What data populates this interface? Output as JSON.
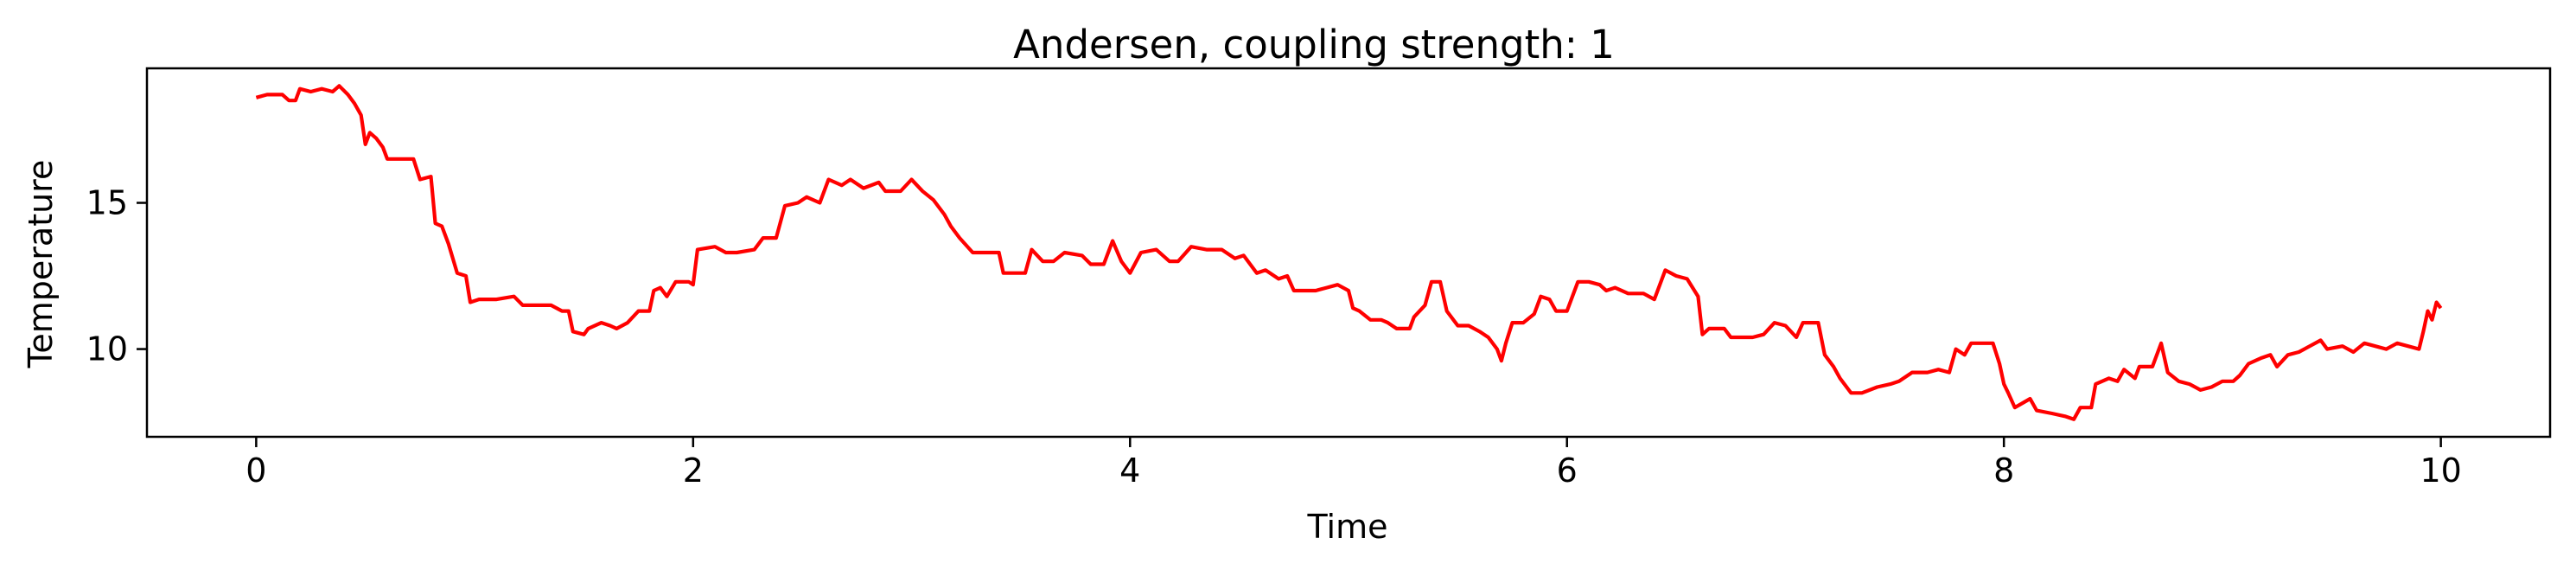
{
  "chart_data": {
    "type": "line",
    "title": "Andersen, coupling strength: 1",
    "xlabel": "Time",
    "ylabel": "Temperature",
    "xlim": [
      -0.5,
      10.5
    ],
    "ylim": [
      7.0,
      19.6
    ],
    "xticks": [
      0,
      2,
      4,
      6,
      8,
      10
    ],
    "yticks": [
      10,
      15
    ],
    "grid": false,
    "legend": "none",
    "series": [
      {
        "color": "#ff0000",
        "points": [
          [
            0.0,
            18.6
          ],
          [
            0.05,
            18.7
          ],
          [
            0.12,
            18.7
          ],
          [
            0.15,
            18.5
          ],
          [
            0.18,
            18.5
          ],
          [
            0.2,
            18.9
          ],
          [
            0.25,
            18.8
          ],
          [
            0.3,
            18.9
          ],
          [
            0.35,
            18.8
          ],
          [
            0.38,
            19.0
          ],
          [
            0.42,
            18.7
          ],
          [
            0.45,
            18.4
          ],
          [
            0.48,
            18.0
          ],
          [
            0.5,
            17.0
          ],
          [
            0.52,
            17.4
          ],
          [
            0.55,
            17.2
          ],
          [
            0.58,
            16.9
          ],
          [
            0.6,
            16.5
          ],
          [
            0.65,
            16.5
          ],
          [
            0.72,
            16.5
          ],
          [
            0.75,
            15.8
          ],
          [
            0.8,
            15.9
          ],
          [
            0.82,
            14.3
          ],
          [
            0.85,
            14.2
          ],
          [
            0.88,
            13.6
          ],
          [
            0.92,
            12.6
          ],
          [
            0.96,
            12.5
          ],
          [
            0.98,
            11.6
          ],
          [
            1.02,
            11.7
          ],
          [
            1.1,
            11.7
          ],
          [
            1.18,
            11.8
          ],
          [
            1.22,
            11.5
          ],
          [
            1.35,
            11.5
          ],
          [
            1.4,
            11.3
          ],
          [
            1.43,
            11.3
          ],
          [
            1.45,
            10.6
          ],
          [
            1.5,
            10.5
          ],
          [
            1.52,
            10.7
          ],
          [
            1.58,
            10.9
          ],
          [
            1.62,
            10.8
          ],
          [
            1.65,
            10.7
          ],
          [
            1.7,
            10.9
          ],
          [
            1.75,
            11.3
          ],
          [
            1.8,
            11.3
          ],
          [
            1.82,
            12.0
          ],
          [
            1.85,
            12.1
          ],
          [
            1.88,
            11.8
          ],
          [
            1.92,
            12.3
          ],
          [
            1.98,
            12.3
          ],
          [
            2.0,
            12.2
          ],
          [
            2.02,
            13.4
          ],
          [
            2.1,
            13.5
          ],
          [
            2.15,
            13.3
          ],
          [
            2.2,
            13.3
          ],
          [
            2.28,
            13.4
          ],
          [
            2.32,
            13.8
          ],
          [
            2.38,
            13.8
          ],
          [
            2.42,
            14.9
          ],
          [
            2.48,
            15.0
          ],
          [
            2.52,
            15.2
          ],
          [
            2.58,
            15.0
          ],
          [
            2.62,
            15.8
          ],
          [
            2.68,
            15.6
          ],
          [
            2.72,
            15.8
          ],
          [
            2.78,
            15.5
          ],
          [
            2.85,
            15.7
          ],
          [
            2.88,
            15.4
          ],
          [
            2.95,
            15.4
          ],
          [
            3.0,
            15.8
          ],
          [
            3.05,
            15.4
          ],
          [
            3.1,
            15.1
          ],
          [
            3.15,
            14.6
          ],
          [
            3.18,
            14.2
          ],
          [
            3.22,
            13.8
          ],
          [
            3.28,
            13.3
          ],
          [
            3.35,
            13.3
          ],
          [
            3.4,
            13.3
          ],
          [
            3.42,
            12.6
          ],
          [
            3.48,
            12.6
          ],
          [
            3.52,
            12.6
          ],
          [
            3.55,
            13.4
          ],
          [
            3.6,
            13.0
          ],
          [
            3.65,
            13.0
          ],
          [
            3.7,
            13.3
          ],
          [
            3.78,
            13.2
          ],
          [
            3.82,
            12.9
          ],
          [
            3.88,
            12.9
          ],
          [
            3.92,
            13.7
          ],
          [
            3.96,
            13.0
          ],
          [
            4.0,
            12.6
          ],
          [
            4.05,
            13.3
          ],
          [
            4.12,
            13.4
          ],
          [
            4.18,
            13.0
          ],
          [
            4.22,
            13.0
          ],
          [
            4.28,
            13.5
          ],
          [
            4.35,
            13.4
          ],
          [
            4.42,
            13.4
          ],
          [
            4.48,
            13.1
          ],
          [
            4.52,
            13.2
          ],
          [
            4.58,
            12.6
          ],
          [
            4.62,
            12.7
          ],
          [
            4.68,
            12.4
          ],
          [
            4.72,
            12.5
          ],
          [
            4.75,
            12.0
          ],
          [
            4.85,
            12.0
          ],
          [
            4.9,
            12.1
          ],
          [
            4.95,
            12.2
          ],
          [
            5.0,
            12.0
          ],
          [
            5.02,
            11.4
          ],
          [
            5.05,
            11.3
          ],
          [
            5.1,
            11.0
          ],
          [
            5.15,
            11.0
          ],
          [
            5.18,
            10.9
          ],
          [
            5.22,
            10.7
          ],
          [
            5.28,
            10.7
          ],
          [
            5.3,
            11.1
          ],
          [
            5.35,
            11.5
          ],
          [
            5.38,
            12.3
          ],
          [
            5.42,
            12.3
          ],
          [
            5.45,
            11.3
          ],
          [
            5.5,
            10.8
          ],
          [
            5.55,
            10.8
          ],
          [
            5.6,
            10.6
          ],
          [
            5.64,
            10.4
          ],
          [
            5.68,
            10.0
          ],
          [
            5.7,
            9.6
          ],
          [
            5.72,
            10.2
          ],
          [
            5.75,
            10.9
          ],
          [
            5.8,
            10.9
          ],
          [
            5.85,
            11.2
          ],
          [
            5.88,
            11.8
          ],
          [
            5.92,
            11.7
          ],
          [
            5.95,
            11.3
          ],
          [
            6.0,
            11.3
          ],
          [
            6.05,
            12.3
          ],
          [
            6.1,
            12.3
          ],
          [
            6.15,
            12.2
          ],
          [
            6.18,
            12.0
          ],
          [
            6.22,
            12.1
          ],
          [
            6.28,
            11.9
          ],
          [
            6.35,
            11.9
          ],
          [
            6.4,
            11.7
          ],
          [
            6.45,
            12.7
          ],
          [
            6.5,
            12.5
          ],
          [
            6.55,
            12.4
          ],
          [
            6.6,
            11.8
          ],
          [
            6.62,
            10.5
          ],
          [
            6.65,
            10.7
          ],
          [
            6.72,
            10.7
          ],
          [
            6.75,
            10.4
          ],
          [
            6.85,
            10.4
          ],
          [
            6.9,
            10.5
          ],
          [
            6.95,
            10.9
          ],
          [
            7.0,
            10.8
          ],
          [
            7.05,
            10.4
          ],
          [
            7.08,
            10.9
          ],
          [
            7.15,
            10.9
          ],
          [
            7.18,
            9.8
          ],
          [
            7.22,
            9.4
          ],
          [
            7.25,
            9.0
          ],
          [
            7.3,
            8.5
          ],
          [
            7.35,
            8.5
          ],
          [
            7.42,
            8.7
          ],
          [
            7.48,
            8.8
          ],
          [
            7.52,
            8.9
          ],
          [
            7.58,
            9.2
          ],
          [
            7.65,
            9.2
          ],
          [
            7.7,
            9.3
          ],
          [
            7.75,
            9.2
          ],
          [
            7.78,
            10.0
          ],
          [
            7.82,
            9.8
          ],
          [
            7.85,
            10.2
          ],
          [
            7.95,
            10.2
          ],
          [
            7.98,
            9.5
          ],
          [
            8.0,
            8.8
          ],
          [
            8.02,
            8.5
          ],
          [
            8.05,
            8.0
          ],
          [
            8.12,
            8.3
          ],
          [
            8.15,
            7.9
          ],
          [
            8.22,
            7.8
          ],
          [
            8.28,
            7.7
          ],
          [
            8.32,
            7.6
          ],
          [
            8.35,
            8.0
          ],
          [
            8.4,
            8.0
          ],
          [
            8.42,
            8.8
          ],
          [
            8.48,
            9.0
          ],
          [
            8.52,
            8.9
          ],
          [
            8.55,
            9.3
          ],
          [
            8.6,
            9.0
          ],
          [
            8.62,
            9.4
          ],
          [
            8.68,
            9.4
          ],
          [
            8.72,
            10.2
          ],
          [
            8.75,
            9.2
          ],
          [
            8.8,
            8.9
          ],
          [
            8.85,
            8.8
          ],
          [
            8.9,
            8.6
          ],
          [
            8.95,
            8.7
          ],
          [
            9.0,
            8.9
          ],
          [
            9.05,
            8.9
          ],
          [
            9.08,
            9.1
          ],
          [
            9.12,
            9.5
          ],
          [
            9.18,
            9.7
          ],
          [
            9.22,
            9.8
          ],
          [
            9.25,
            9.4
          ],
          [
            9.3,
            9.8
          ],
          [
            9.35,
            9.9
          ],
          [
            9.4,
            10.1
          ],
          [
            9.45,
            10.3
          ],
          [
            9.48,
            10.0
          ],
          [
            9.55,
            10.1
          ],
          [
            9.6,
            9.9
          ],
          [
            9.65,
            10.2
          ],
          [
            9.7,
            10.1
          ],
          [
            9.75,
            10.0
          ],
          [
            9.8,
            10.2
          ],
          [
            9.85,
            10.1
          ],
          [
            9.9,
            10.0
          ],
          [
            9.92,
            10.6
          ],
          [
            9.94,
            11.3
          ],
          [
            9.96,
            11.0
          ],
          [
            9.98,
            11.6
          ],
          [
            10.0,
            11.4
          ]
        ]
      }
    ]
  }
}
